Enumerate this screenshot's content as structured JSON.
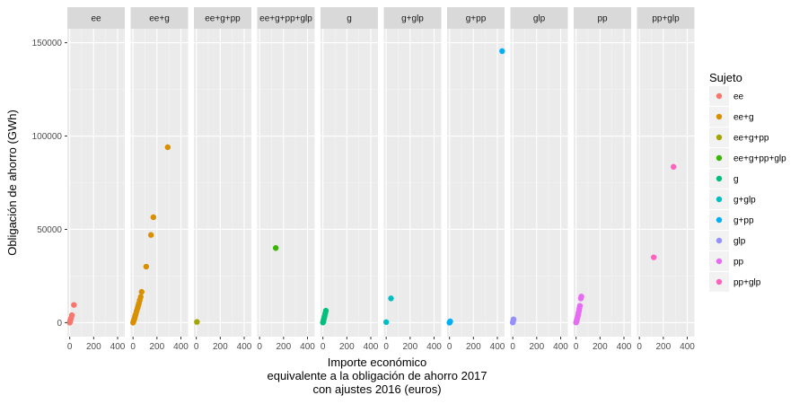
{
  "chart_data": {
    "type": "scatter",
    "facets": [
      "ee",
      "ee+g",
      "ee+g+pp",
      "ee+g+pp+glp",
      "g",
      "g+glp",
      "g+pp",
      "glp",
      "pp",
      "pp+glp"
    ],
    "xlabel": [
      "Importe económico",
      "equivalente a la obligación de ahorro 2017",
      "con ajustes 2016 (euros)"
    ],
    "ylabel": "Obligación de ahorro (GWh)",
    "xlim": [
      -20,
      460
    ],
    "ylim": [
      -7500,
      157500
    ],
    "x_ticks": [
      0,
      200,
      400
    ],
    "x_tick_labels": [
      "0",
      "200",
      "400"
    ],
    "y_ticks": [
      0,
      50000,
      100000,
      150000
    ],
    "y_tick_labels": [
      "0",
      "50000",
      "100000",
      "150000"
    ],
    "grid": true,
    "legend": {
      "title": "Sujeto",
      "position": "right",
      "items": [
        {
          "label": "ee",
          "color": "#F8766D"
        },
        {
          "label": "ee+g",
          "color": "#D89000"
        },
        {
          "label": "ee+g+pp",
          "color": "#A3A500"
        },
        {
          "label": "ee+g+pp+glp",
          "color": "#39B600"
        },
        {
          "label": "g",
          "color": "#00BF7D"
        },
        {
          "label": "g+glp",
          "color": "#00BFC4"
        },
        {
          "label": "g+pp",
          "color": "#00B0F6"
        },
        {
          "label": "glp",
          "color": "#9590FF"
        },
        {
          "label": "pp",
          "color": "#E76BF3"
        },
        {
          "label": "pp+glp",
          "color": "#FF62BC"
        }
      ]
    },
    "series": [
      {
        "name": "ee",
        "color": "#F8766D",
        "points": [
          [
            0,
            0
          ],
          [
            2,
            300
          ],
          [
            3,
            800
          ],
          [
            5,
            1200
          ],
          [
            8,
            1800
          ],
          [
            12,
            2500
          ],
          [
            18,
            4000
          ],
          [
            35,
            9500
          ]
        ]
      },
      {
        "name": "ee+g",
        "color": "#D89000",
        "points": [
          [
            0,
            0
          ],
          [
            3,
            500
          ],
          [
            6,
            1000
          ],
          [
            10,
            1800
          ],
          [
            14,
            2600
          ],
          [
            18,
            3600
          ],
          [
            24,
            4800
          ],
          [
            30,
            6200
          ],
          [
            38,
            7800
          ],
          [
            44,
            9200
          ],
          [
            50,
            10500
          ],
          [
            56,
            12000
          ],
          [
            64,
            13800
          ],
          [
            72,
            16500
          ],
          [
            110,
            30000
          ],
          [
            150,
            47000
          ],
          [
            170,
            56500
          ],
          [
            290,
            94000
          ]
        ]
      },
      {
        "name": "ee+g+pp",
        "color": "#A3A500",
        "points": [
          [
            5,
            400
          ]
        ]
      },
      {
        "name": "ee+g+pp+glp",
        "color": "#39B600",
        "points": [
          [
            135,
            40000
          ]
        ]
      },
      {
        "name": "g",
        "color": "#00BF7D",
        "points": [
          [
            0,
            100
          ],
          [
            2,
            400
          ],
          [
            4,
            800
          ],
          [
            6,
            1500
          ],
          [
            10,
            2400
          ],
          [
            14,
            3500
          ],
          [
            20,
            5000
          ],
          [
            25,
            6400
          ]
        ]
      },
      {
        "name": "g+glp",
        "color": "#00BFC4",
        "points": [
          [
            0,
            300
          ],
          [
            40,
            13000
          ]
        ]
      },
      {
        "name": "g+pp",
        "color": "#00B0F6",
        "points": [
          [
            0,
            0
          ],
          [
            2,
            200
          ],
          [
            4,
            400
          ],
          [
            6,
            700
          ],
          [
            440,
            145500
          ]
        ]
      },
      {
        "name": "glp",
        "color": "#9590FF",
        "points": [
          [
            0,
            100
          ],
          [
            2,
            500
          ],
          [
            4,
            1200
          ],
          [
            6,
            1800
          ]
        ]
      },
      {
        "name": "pp",
        "color": "#E76BF3",
        "points": [
          [
            0,
            100
          ],
          [
            3,
            600
          ],
          [
            6,
            1200
          ],
          [
            9,
            2000
          ],
          [
            12,
            2800
          ],
          [
            15,
            3600
          ],
          [
            18,
            4500
          ],
          [
            21,
            5500
          ],
          [
            25,
            6500
          ],
          [
            28,
            7800
          ],
          [
            32,
            9000
          ],
          [
            40,
            13000
          ],
          [
            44,
            14000
          ]
        ]
      },
      {
        "name": "pp+glp",
        "color": "#FF62BC",
        "points": [
          [
            120,
            35000
          ],
          [
            285,
            83500
          ]
        ]
      }
    ]
  }
}
